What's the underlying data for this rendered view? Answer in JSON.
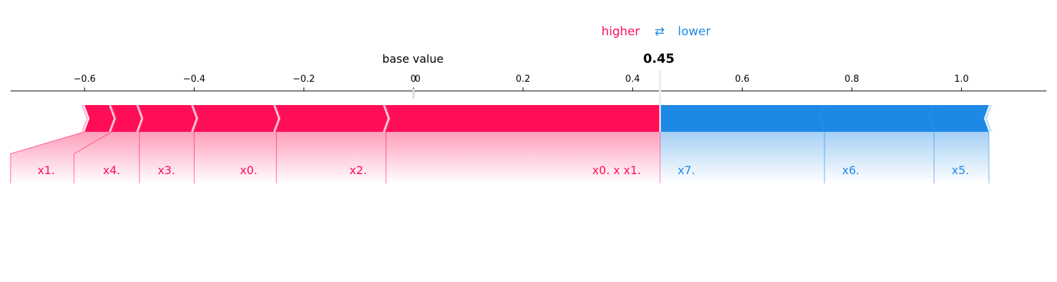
{
  "legend": {
    "higher_label": "higher",
    "arrow_symbol": "⇄",
    "lower_label": "lower",
    "higher_color": "#ff0d57",
    "lower_color": "#1e88e5"
  },
  "chart_data": {
    "type": "force",
    "base_value_label": "base value",
    "base_value": 0.0,
    "output_value": 0.45,
    "output_label": "0.45",
    "xlim": [
      -0.735,
      1.155
    ],
    "ticks": [
      -0.6,
      -0.4,
      -0.2,
      0.0,
      0.2,
      0.4,
      0.6,
      0.8,
      1.0
    ],
    "tick_labels": [
      "−0.6",
      "−0.4",
      "−0.2",
      "0",
      "0.2",
      "0.4",
      "0.6",
      "0.8",
      "1.0"
    ],
    "base_tick_label": "0",
    "positive_features": [
      {
        "label": "x1.",
        "from": -0.6,
        "to": -0.55
      },
      {
        "label": "x4.",
        "from": -0.55,
        "to": -0.5
      },
      {
        "label": "x3.",
        "from": -0.5,
        "to": -0.4
      },
      {
        "label": "x0.",
        "from": -0.4,
        "to": -0.25
      },
      {
        "label": "x2.",
        "from": -0.25,
        "to": -0.05
      },
      {
        "label": "x0. x x1.",
        "from": -0.05,
        "to": 0.45
      }
    ],
    "negative_features": [
      {
        "label": "x7.",
        "from": 0.45,
        "to": 0.75
      },
      {
        "label": "x6.",
        "from": 0.75,
        "to": 0.95
      },
      {
        "label": "x5.",
        "from": 0.95,
        "to": 1.05
      }
    ]
  }
}
